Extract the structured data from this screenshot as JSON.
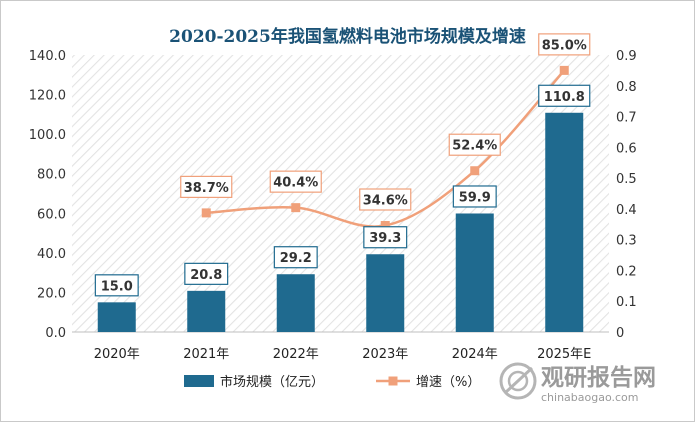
{
  "chart_data": {
    "type": "bar+line",
    "title": "2020-2025年我国氢燃料电池市场规模及增速",
    "categories": [
      "2020年",
      "2021年",
      "2022年",
      "2023年",
      "2024年",
      "2025年E"
    ],
    "series": [
      {
        "name": "市场规模（亿元）",
        "type": "bar",
        "axis": "left",
        "color": "#1f6a8f",
        "values": [
          15.0,
          20.8,
          29.2,
          39.3,
          59.9,
          110.8
        ],
        "labels": [
          "15.0",
          "20.8",
          "29.2",
          "39.3",
          "59.9",
          "110.8"
        ]
      },
      {
        "name": "增速（%）",
        "type": "line",
        "axis": "right",
        "color": "#f0a07a",
        "values": [
          null,
          0.387,
          0.404,
          0.346,
          0.524,
          0.85
        ],
        "labels": [
          "",
          "38.7%",
          "40.4%",
          "34.6%",
          "52.4%",
          "85.0%"
        ]
      }
    ],
    "y_left": {
      "min": 0,
      "max": 140,
      "step": 20,
      "ticks": [
        "0.0",
        "20.0",
        "40.0",
        "60.0",
        "80.0",
        "100.0",
        "120.0",
        "140.0"
      ]
    },
    "y_right": {
      "min": 0,
      "max": 0.9,
      "step": 0.1,
      "ticks": [
        "0",
        "0.1",
        "0.2",
        "0.3",
        "0.4",
        "0.5",
        "0.6",
        "0.7",
        "0.8",
        "0.9"
      ]
    },
    "legend_position": "bottom-center"
  },
  "watermark": {
    "brand": "观研报告网",
    "url": "chinabaogao.com"
  },
  "colors": {
    "bar": "#1f6a8f",
    "line": "#f0a07a",
    "label_border_bar": "#1f6a8f",
    "label_border_line": "#f0a07a",
    "title": "#1a5276"
  }
}
